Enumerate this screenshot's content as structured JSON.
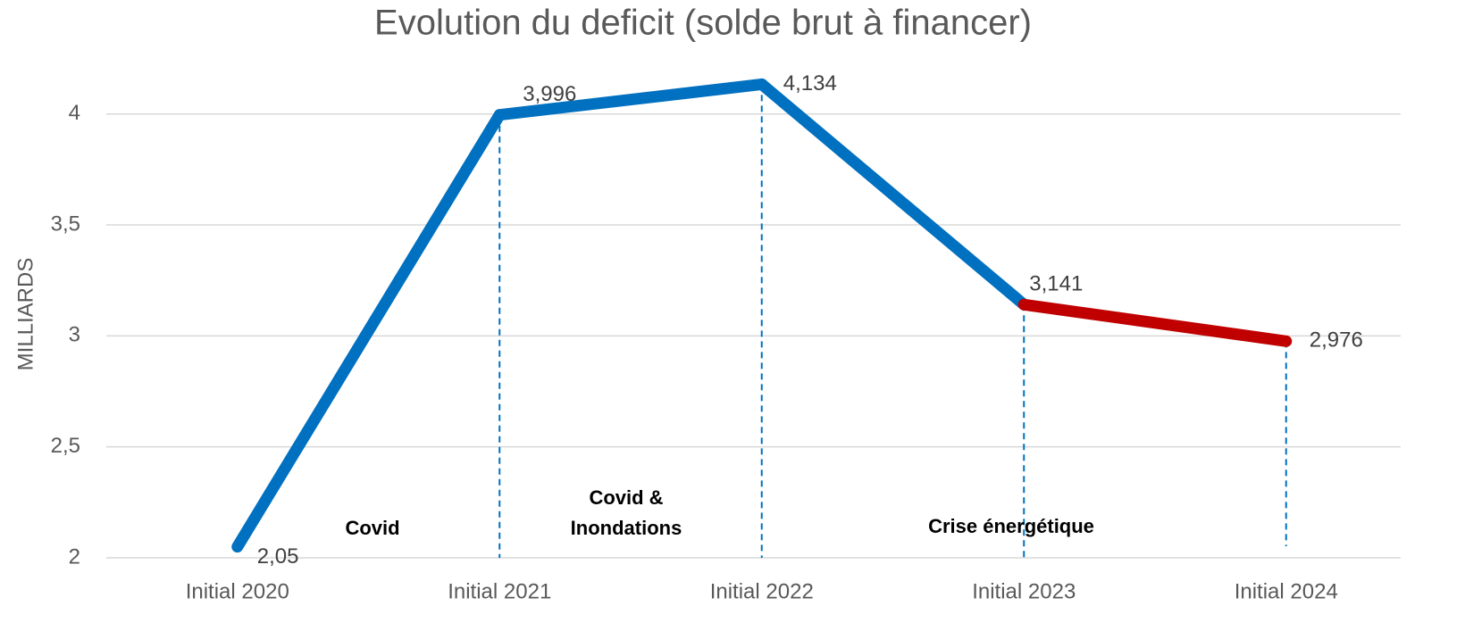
{
  "chart_data": {
    "type": "line",
    "title": "Evolution du deficit (solde brut à financer)",
    "y_label": "MILLIARDS",
    "categories": [
      "Initial 2020",
      "Initial 2021",
      "Initial 2022",
      "Initial 2023",
      "Initial 2024"
    ],
    "series": [
      {
        "values": [
          2.05,
          3.996,
          4.134,
          3.141,
          2.976
        ],
        "value_labels": [
          "2,05",
          "3,996",
          "4,134",
          "3,141",
          "2,976"
        ],
        "segment_colors": [
          "#0070c0",
          "#0070c0",
          "#0070c0",
          "#c00000"
        ]
      }
    ],
    "ylim": [
      2,
      4.2
    ],
    "yticks": [
      2,
      {
        "value": 2.5,
        "label": "2,5"
      },
      3,
      {
        "value": 3.5,
        "label": "3,5"
      },
      4
    ],
    "grid": true,
    "drop_lines": true,
    "annotations": [
      {
        "lines": [
          "Covid"
        ]
      },
      {
        "lines": [
          "Covid &",
          "Inondations"
        ]
      },
      {
        "lines": [
          "Crise énergétique"
        ]
      }
    ]
  }
}
